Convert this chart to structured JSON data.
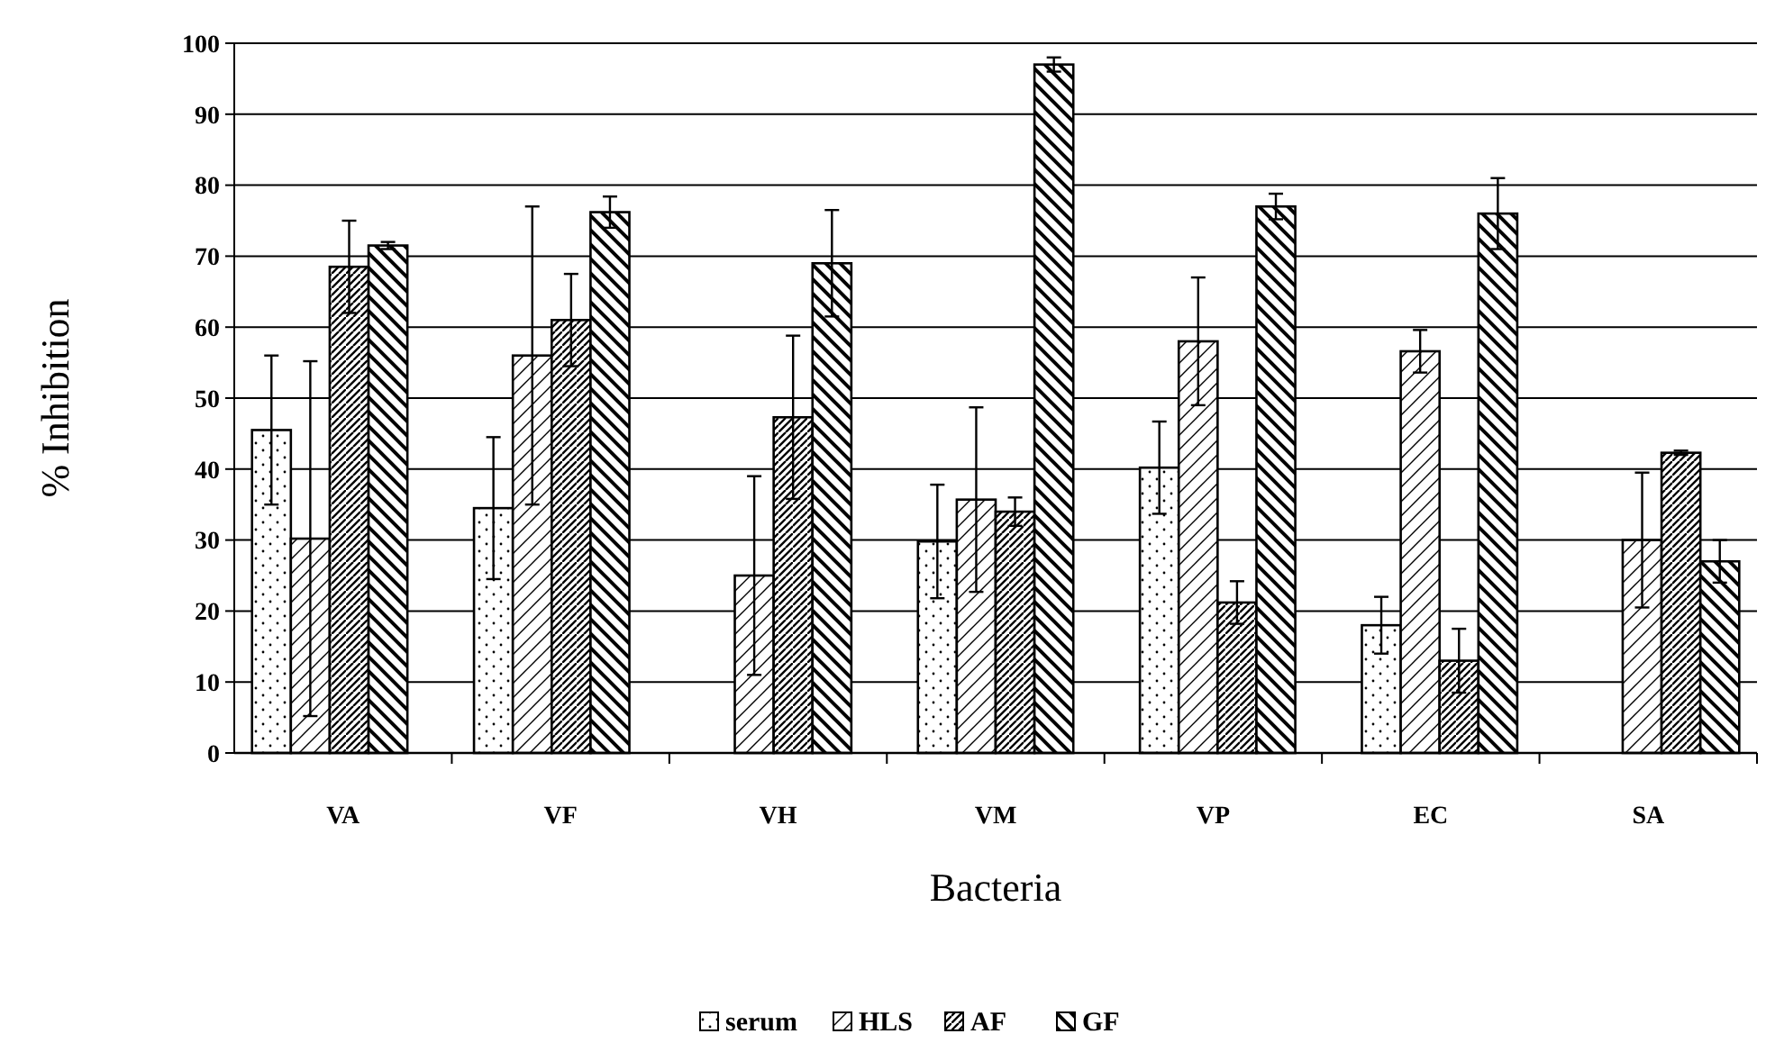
{
  "chart_data": {
    "type": "bar",
    "xlabel": "Bacteria",
    "ylabel": "% Inhibition",
    "categories": [
      "VA",
      "VF",
      "VH",
      "VM",
      "VP",
      "EC",
      "SA"
    ],
    "series": [
      {
        "name": "serum",
        "color": "#000000",
        "values": [
          45.5,
          34.5,
          null,
          29.8,
          40.2,
          18,
          null
        ],
        "errors": [
          10.5,
          10,
          null,
          8,
          6.5,
          4,
          null
        ]
      },
      {
        "name": "HLS",
        "color": "#000000",
        "values": [
          30.2,
          56,
          25,
          35.7,
          58,
          56.6,
          30
        ],
        "errors": [
          25,
          21,
          14,
          13,
          9,
          3,
          9.5
        ]
      },
      {
        "name": "AF",
        "color": "#000000",
        "values": [
          68.5,
          61,
          47.3,
          34,
          21.2,
          13,
          42.3
        ],
        "errors": [
          6.5,
          6.5,
          11.5,
          2,
          3,
          4.5,
          0.3
        ]
      },
      {
        "name": "GF",
        "color": "#000000",
        "values": [
          71.5,
          76.2,
          69,
          97,
          77,
          76,
          27
        ],
        "errors": [
          0.5,
          2.2,
          7.5,
          1,
          1.8,
          5,
          3
        ]
      }
    ],
    "ylim": [
      0,
      100
    ],
    "yticks": [
      0,
      10,
      20,
      30,
      40,
      50,
      60,
      70,
      80,
      90,
      100
    ],
    "grid": "y",
    "legend": "bottom"
  }
}
